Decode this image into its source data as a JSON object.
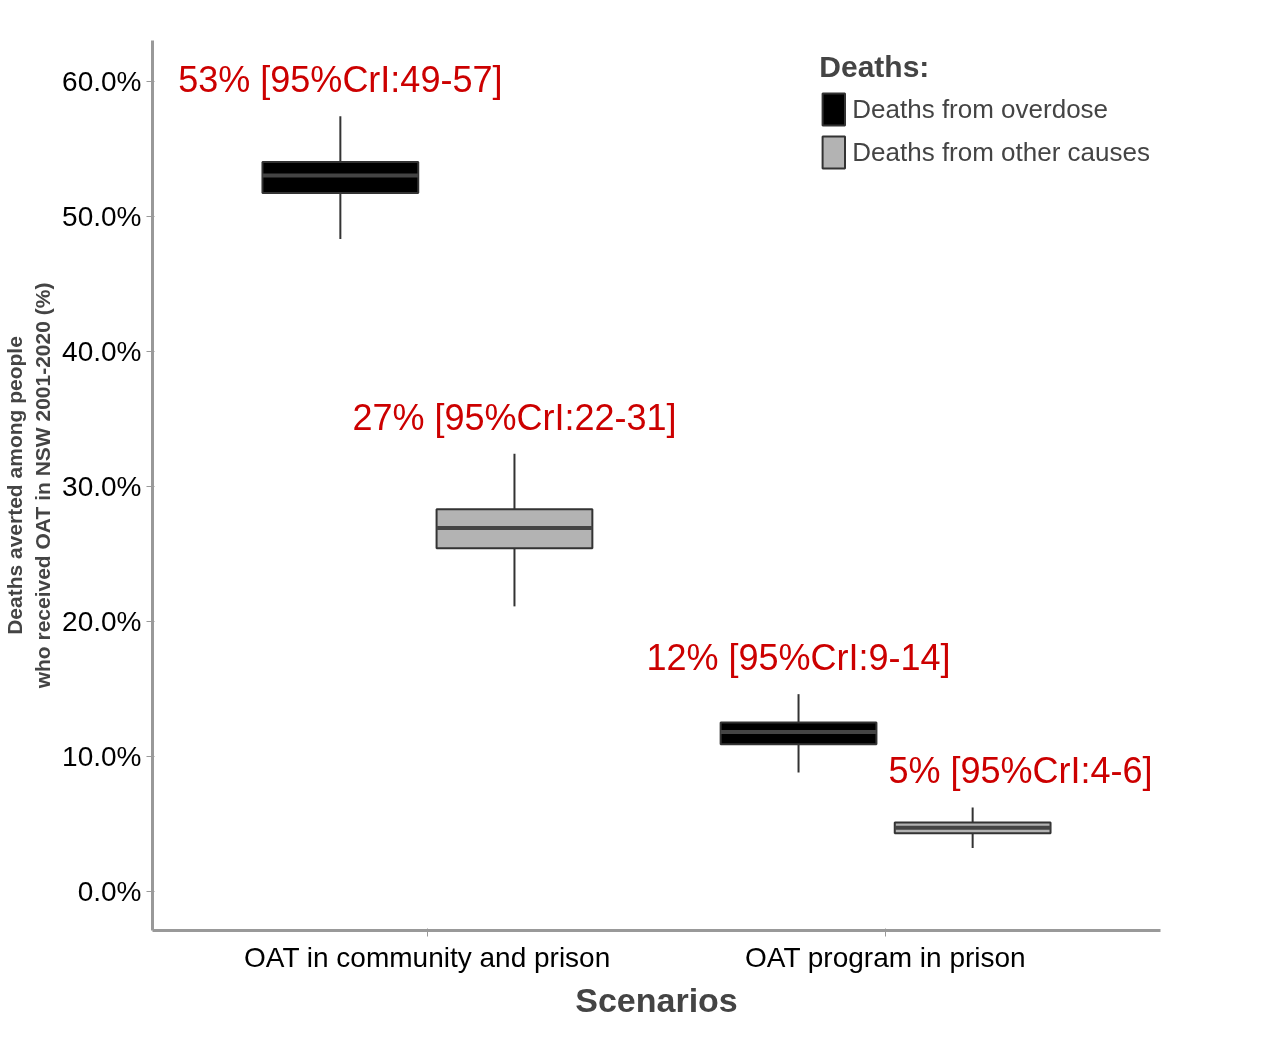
{
  "chart_data": {
    "type": "box",
    "xlabel": "Scenarios",
    "ylabel": "Deaths averted among people\nwho received OAT in NSW 2001-2020 (%)",
    "categories": [
      "OAT in community and prison",
      "OAT program in prison"
    ],
    "legend_title": "Deaths:",
    "series": [
      {
        "name": "Deaths from overdose",
        "color": "#000000",
        "boxes": [
          {
            "low": 48.3,
            "q1": 51.7,
            "median": 53.0,
            "q3": 54.0,
            "high": 57.4
          },
          {
            "low": 8.8,
            "q1": 10.9,
            "median": 11.8,
            "q3": 12.5,
            "high": 14.6
          }
        ]
      },
      {
        "name": "Deaths from other causes",
        "color": "#b3b3b3",
        "boxes": [
          {
            "low": 21.1,
            "q1": 25.4,
            "median": 26.9,
            "q3": 28.3,
            "high": 32.4
          },
          {
            "low": 3.2,
            "q1": 4.3,
            "median": 4.7,
            "q3": 5.1,
            "high": 6.2
          }
        ]
      }
    ],
    "annotations": [
      "53% [95%CrI:49-57]",
      "27% [95%CrI:22-31]",
      "12% [95%CrI:9-14]",
      "5% [95%CrI:4-6]"
    ],
    "ylim": [
      -2.9,
      63
    ],
    "yticks": [
      {
        "value": 0,
        "label": "0.0%"
      },
      {
        "value": 10,
        "label": "10.0%"
      },
      {
        "value": 20,
        "label": "20.0%"
      },
      {
        "value": 30,
        "label": "30.0%"
      },
      {
        "value": 40,
        "label": "40.0%"
      },
      {
        "value": 50,
        "label": "50.0%"
      },
      {
        "value": 60,
        "label": "60.0%"
      }
    ],
    "grid": false,
    "legend": "top right"
  }
}
